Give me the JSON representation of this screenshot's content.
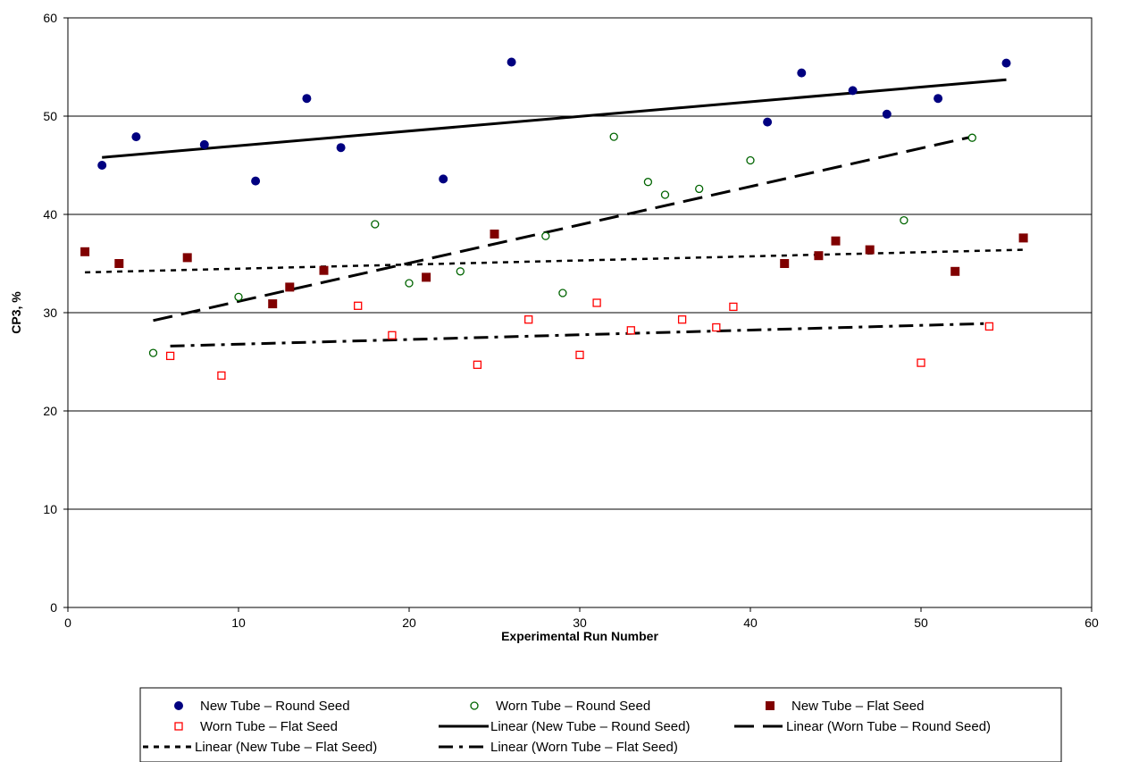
{
  "chart_data": {
    "type": "scatter",
    "xlabel": "Experimental Run Number",
    "ylabel": "CP3, %",
    "xlim": [
      0,
      60
    ],
    "ylim": [
      0,
      60
    ],
    "x_ticks": [
      0,
      10,
      20,
      30,
      40,
      50,
      60
    ],
    "y_ticks": [
      0,
      10,
      20,
      30,
      40,
      50,
      60
    ],
    "grid": "horizontal",
    "legend_position": "bottom",
    "series": [
      {
        "name": "New Tube - Round Seed",
        "marker": "filled-circle",
        "color": "#000080",
        "points": [
          [
            2,
            45
          ],
          [
            4,
            47.9
          ],
          [
            8,
            47.1
          ],
          [
            11,
            43.4
          ],
          [
            14,
            51.8
          ],
          [
            16,
            46.8
          ],
          [
            22,
            43.6
          ],
          [
            26,
            55.5
          ],
          [
            41,
            49.4
          ],
          [
            43,
            54.4
          ],
          [
            46,
            52.6
          ],
          [
            48,
            50.2
          ],
          [
            51,
            51.8
          ],
          [
            55,
            55.4
          ]
        ]
      },
      {
        "name": "Worn Tube - Round Seed",
        "marker": "open-circle",
        "color": "#006400",
        "points": [
          [
            5,
            25.9
          ],
          [
            10,
            31.6
          ],
          [
            18,
            39
          ],
          [
            20,
            33
          ],
          [
            23,
            34.2
          ],
          [
            28,
            37.8
          ],
          [
            29,
            32
          ],
          [
            32,
            47.9
          ],
          [
            34,
            43.3
          ],
          [
            35,
            42
          ],
          [
            37,
            42.6
          ],
          [
            40,
            45.5
          ],
          [
            49,
            39.4
          ],
          [
            53,
            47.8
          ]
        ]
      },
      {
        "name": "New Tube - Flat Seed",
        "marker": "filled-square",
        "color": "#800000",
        "points": [
          [
            1,
            36.2
          ],
          [
            3,
            35
          ],
          [
            7,
            35.6
          ],
          [
            12,
            30.9
          ],
          [
            13,
            32.6
          ],
          [
            15,
            34.3
          ],
          [
            21,
            33.6
          ],
          [
            25,
            38
          ],
          [
            42,
            35
          ],
          [
            44,
            35.8
          ],
          [
            45,
            37.3
          ],
          [
            47,
            36.4
          ],
          [
            52,
            34.2
          ],
          [
            56,
            37.6
          ]
        ]
      },
      {
        "name": "Worn Tube - Flat Seed",
        "marker": "open-square",
        "color": "#ff0000",
        "points": [
          [
            6,
            25.6
          ],
          [
            9,
            23.6
          ],
          [
            17,
            30.7
          ],
          [
            19,
            27.7
          ],
          [
            24,
            24.7
          ],
          [
            27,
            29.3
          ],
          [
            30,
            25.7
          ],
          [
            31,
            31
          ],
          [
            33,
            28.2
          ],
          [
            36,
            29.3
          ],
          [
            38,
            28.5
          ],
          [
            39,
            30.6
          ],
          [
            50,
            24.9
          ],
          [
            54,
            28.6
          ]
        ]
      }
    ],
    "trendlines": [
      {
        "name": "Linear (New Tube - Round Seed)",
        "style": "solid",
        "x": [
          2,
          55
        ],
        "y": [
          45.8,
          53.7
        ]
      },
      {
        "name": "Linear (Worn Tube - Round Seed)",
        "style": "long-dash",
        "x": [
          5,
          53
        ],
        "y": [
          29.2,
          47.9
        ]
      },
      {
        "name": "Linear (New Tube - Flat Seed)",
        "style": "short-dash",
        "x": [
          1,
          56
        ],
        "y": [
          34.1,
          36.4
        ]
      },
      {
        "name": "Linear (Worn Tube - Flat Seed)",
        "style": "dash-dot",
        "x": [
          6,
          54
        ],
        "y": [
          26.6,
          28.9
        ]
      }
    ]
  },
  "legend": {
    "items": [
      "New Tube – Round Seed",
      "Worn Tube – Round Seed",
      "New Tube – Flat Seed",
      "Worn Tube – Flat Seed",
      "Linear (New Tube – Round Seed)",
      "Linear (Worn Tube – Round Seed)",
      "Linear (New Tube – Flat Seed)",
      "Linear (Worn Tube – Flat Seed)"
    ]
  }
}
